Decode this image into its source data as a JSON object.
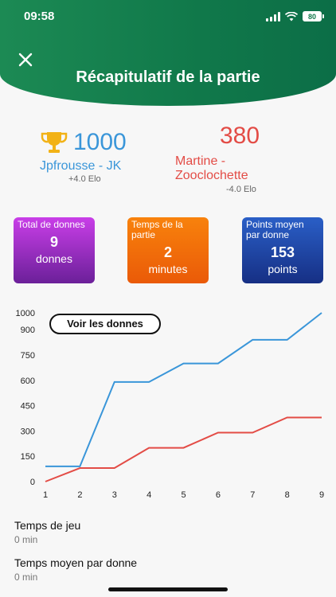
{
  "status": {
    "time": "09:58",
    "battery": "80"
  },
  "header": {
    "title": "Récapitulatif de la partie"
  },
  "players": [
    {
      "score": "1000",
      "name": "Jpfrousse - JK",
      "elo": "+4.0 Elo",
      "color": "#3a96d9"
    },
    {
      "score": "380",
      "name_line1": "Martine -",
      "name_line2": "Zooclochette",
      "elo": "-4.0 Elo",
      "color": "#e34c46"
    }
  ],
  "stats": [
    {
      "label": "Total de donnes",
      "value": "9",
      "unit": "donnes"
    },
    {
      "label": "Temps de la partie",
      "value": "2",
      "unit": "minutes"
    },
    {
      "label": "Points moyen par donne",
      "value": "153",
      "unit": "points"
    }
  ],
  "voir_button": "Voir les donnes",
  "chart_data": {
    "type": "line",
    "x": [
      1,
      2,
      3,
      4,
      5,
      6,
      7,
      8,
      9
    ],
    "y_ticks": [
      0,
      150,
      300,
      450,
      600,
      750,
      900,
      1000
    ],
    "ylim": [
      0,
      1000
    ],
    "series": [
      {
        "color": "#3a96d9",
        "values": [
          90,
          90,
          590,
          590,
          700,
          700,
          840,
          840,
          1000
        ]
      },
      {
        "color": "#e34c46",
        "values": [
          0,
          80,
          80,
          200,
          200,
          290,
          290,
          380,
          380
        ]
      }
    ]
  },
  "info": [
    {
      "label": "Temps de jeu",
      "value": "0 min"
    },
    {
      "label": "Temps moyen par donne",
      "value": "0 min"
    }
  ]
}
